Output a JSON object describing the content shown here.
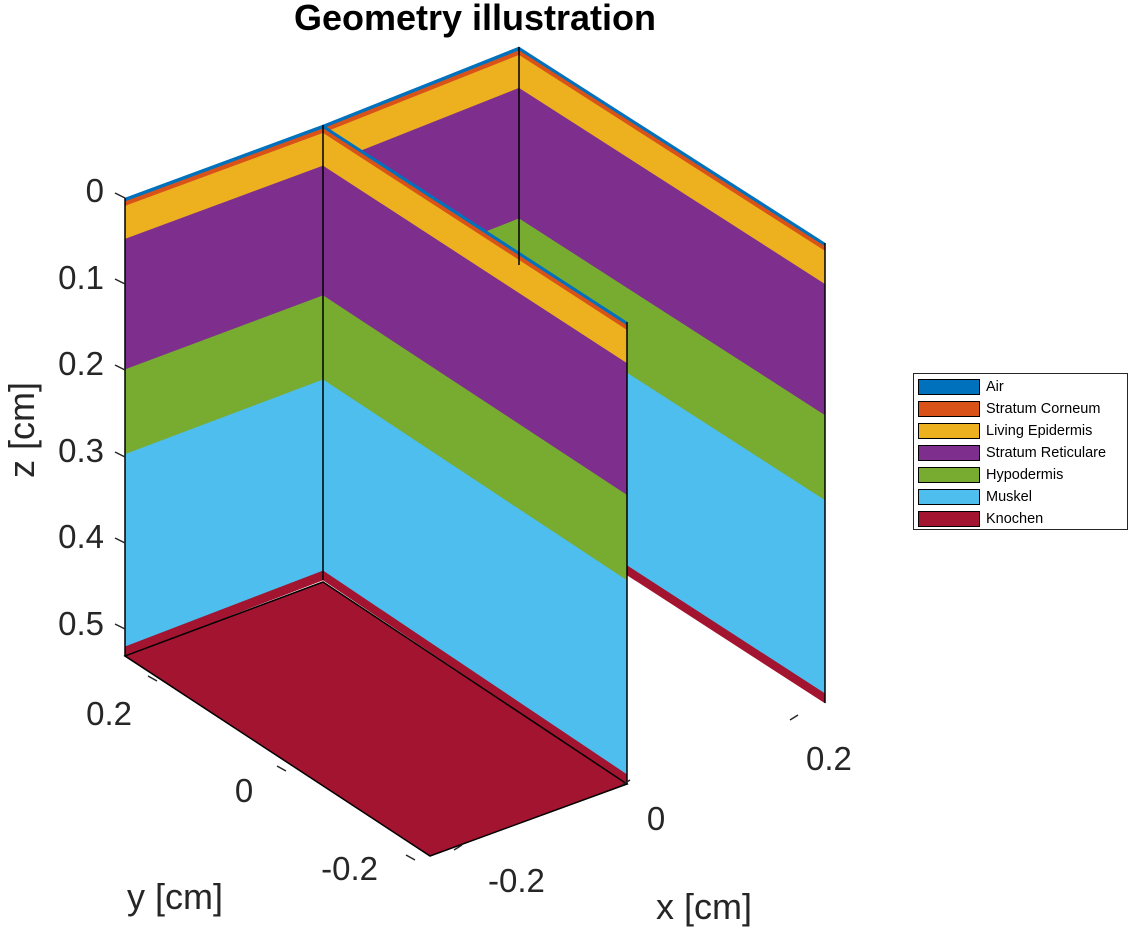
{
  "title": "Geometry illustration",
  "axes": {
    "z": {
      "label": "z [cm]",
      "ticks": [
        "0",
        "0.1",
        "0.2",
        "0.3",
        "0.4",
        "0.5"
      ]
    },
    "y": {
      "label": "y [cm]",
      "ticks": [
        "0.2",
        "0",
        "-0.2"
      ]
    },
    "x": {
      "label": "x [cm]",
      "ticks": [
        "0.2",
        "0",
        "-0.2"
      ]
    }
  },
  "layers": [
    {
      "name": "Air",
      "color": "#0072BD"
    },
    {
      "name": "Stratum Corneum",
      "color": "#D95319"
    },
    {
      "name": "Living Epidermis",
      "color": "#EDB120"
    },
    {
      "name": "Stratum Reticulare",
      "color": "#7E2F8E"
    },
    {
      "name": "Hypodermis",
      "color": "#77AC30"
    },
    {
      "name": "Muskel",
      "color": "#4DBEEE"
    },
    {
      "name": "Knochen",
      "color": "#A2142F"
    }
  ]
}
